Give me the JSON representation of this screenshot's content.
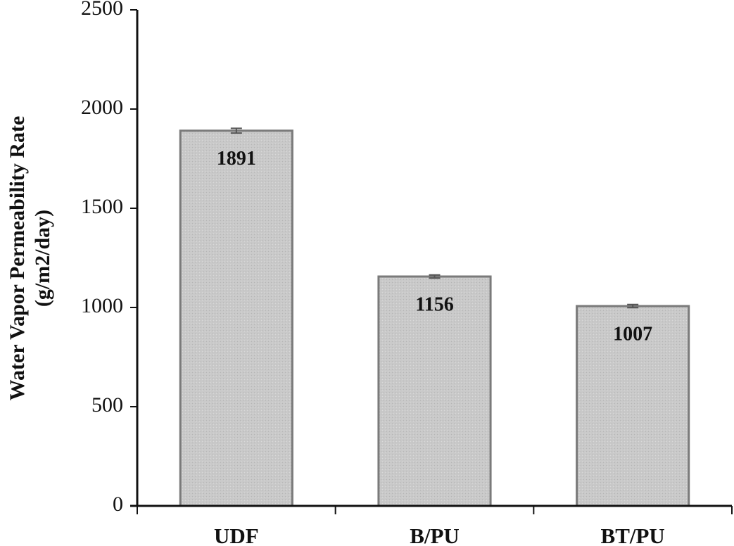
{
  "chart_data": {
    "type": "bar",
    "y_label": [
      "Water Vapor Permeability Rate",
      "(g/m2/day)"
    ],
    "categories": [
      "UDF",
      "B/PU",
      "BT/PU"
    ],
    "values": [
      1891,
      1156,
      1007
    ],
    "errors": [
      12,
      8,
      8
    ],
    "color": "#c9c9c9",
    "edge_color": "#7a7a7a",
    "ylim": [
      0,
      2500
    ],
    "yticks": [
      0,
      500,
      1000,
      1500,
      2000,
      2500
    ],
    "grid": false
  }
}
